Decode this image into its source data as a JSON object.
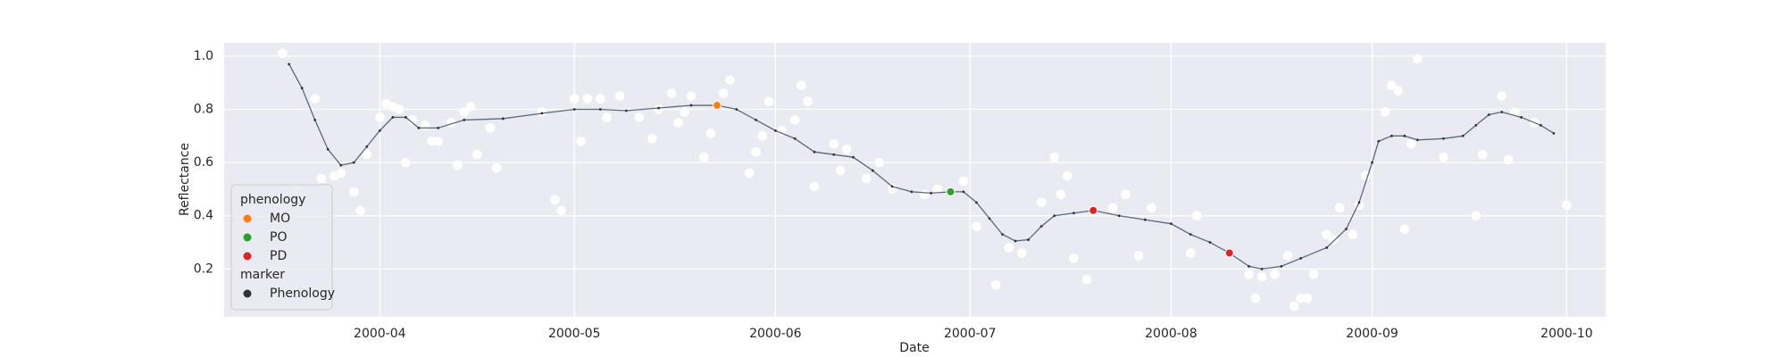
{
  "chart_data": {
    "type": "scatter",
    "x_label": "Date",
    "y_label": "Reflectance",
    "xlim": [
      "2000-03-08",
      "2000-10-07"
    ],
    "xticks": [
      {
        "value": "2000-04-01",
        "label": "2000-04"
      },
      {
        "value": "2000-05-01",
        "label": "2000-05"
      },
      {
        "value": "2000-06-01",
        "label": "2000-06"
      },
      {
        "value": "2000-07-01",
        "label": "2000-07"
      },
      {
        "value": "2000-08-01",
        "label": "2000-08"
      },
      {
        "value": "2000-09-01",
        "label": "2000-09"
      },
      {
        "value": "2000-10-01",
        "label": "2000-10"
      }
    ],
    "ylim": [
      0.02,
      1.05
    ],
    "yticks": [
      0.2,
      0.4,
      0.6,
      0.8,
      {
        "value": 1,
        "label": "1.0"
      }
    ],
    "grid": true,
    "legend": {
      "position": "lower left",
      "title": "phenology",
      "marker_title": "marker",
      "marker_label": "Phenology",
      "marker_color": "#333333"
    },
    "series": [
      {
        "color": "#ffffff",
        "x": [
          "2000-03-17",
          "2000-03-19",
          "2000-03-22",
          "2000-03-23",
          "2000-03-25",
          "2000-03-26",
          "2000-03-28",
          "2000-03-29",
          "2000-03-30",
          "2000-04-01",
          "2000-04-02",
          "2000-04-03",
          "2000-04-04",
          "2000-04-05",
          "2000-04-06",
          "2000-04-08",
          "2000-04-09",
          "2000-04-10",
          "2000-04-12",
          "2000-04-13",
          "2000-04-14",
          "2000-04-15",
          "2000-04-16",
          "2000-04-18",
          "2000-04-19",
          "2000-04-26",
          "2000-04-28",
          "2000-04-29",
          "2000-05-01",
          "2000-05-02",
          "2000-05-03",
          "2000-05-05",
          "2000-05-06",
          "2000-05-08",
          "2000-05-11",
          "2000-05-13",
          "2000-05-14",
          "2000-05-16",
          "2000-05-17",
          "2000-05-18",
          "2000-05-19",
          "2000-05-21",
          "2000-05-22",
          "2000-05-24",
          "2000-05-25",
          "2000-05-28",
          "2000-05-29",
          "2000-05-30",
          "2000-05-31",
          "2000-06-02",
          "2000-06-04",
          "2000-06-05",
          "2000-06-06",
          "2000-06-07",
          "2000-06-10",
          "2000-06-11",
          "2000-06-12",
          "2000-06-15",
          "2000-06-17",
          "2000-06-19",
          "2000-06-24",
          "2000-06-26",
          "2000-06-30",
          "2000-07-02",
          "2000-07-05",
          "2000-07-07",
          "2000-07-09",
          "2000-07-12",
          "2000-07-14",
          "2000-07-15",
          "2000-07-16",
          "2000-07-17",
          "2000-07-19",
          "2000-07-23",
          "2000-07-25",
          "2000-07-27",
          "2000-07-29",
          "2000-08-04",
          "2000-08-05",
          "2000-08-13",
          "2000-08-14",
          "2000-08-15",
          "2000-08-17",
          "2000-08-19",
          "2000-08-20",
          "2000-08-21",
          "2000-08-22",
          "2000-08-23",
          "2000-08-25",
          "2000-08-26",
          "2000-08-27",
          "2000-08-29",
          "2000-08-30",
          "2000-08-31",
          "2000-09-03",
          "2000-09-04",
          "2000-09-05",
          "2000-09-06",
          "2000-09-07",
          "2000-09-08",
          "2000-09-12",
          "2000-09-17",
          "2000-09-18",
          "2000-09-21",
          "2000-09-22",
          "2000-09-23",
          "2000-09-26",
          "2000-10-01"
        ],
        "values": [
          1.01,
          0.49,
          0.84,
          0.54,
          0.55,
          0.56,
          0.49,
          0.42,
          0.63,
          0.77,
          0.82,
          0.81,
          0.8,
          0.6,
          0.76,
          0.74,
          0.68,
          0.68,
          0.75,
          0.59,
          0.79,
          0.81,
          0.63,
          0.73,
          0.58,
          0.79,
          0.46,
          0.42,
          0.84,
          0.68,
          0.84,
          0.84,
          0.77,
          0.85,
          0.77,
          0.69,
          0.8,
          0.86,
          0.75,
          0.79,
          0.85,
          0.62,
          0.71,
          0.86,
          0.91,
          0.56,
          0.64,
          0.7,
          0.83,
          0.72,
          0.76,
          0.89,
          0.83,
          0.51,
          0.67,
          0.57,
          0.65,
          0.54,
          0.6,
          0.5,
          0.48,
          0.5,
          0.53,
          0.36,
          0.14,
          0.28,
          0.26,
          0.45,
          0.62,
          0.48,
          0.55,
          0.24,
          0.16,
          0.43,
          0.48,
          0.25,
          0.43,
          0.26,
          0.4,
          0.18,
          0.09,
          0.17,
          0.18,
          0.25,
          0.06,
          0.09,
          0.09,
          0.18,
          0.33,
          0.31,
          0.43,
          0.33,
          0.44,
          0.55,
          0.79,
          0.89,
          0.87,
          0.35,
          0.67,
          0.99,
          0.62,
          0.4,
          0.63,
          0.85,
          0.61,
          0.79,
          0.75,
          0.44
        ]
      },
      {
        "type": "line",
        "color": "#5b6a7a",
        "x": [
          "2000-03-18",
          "2000-03-20",
          "2000-03-22",
          "2000-03-24",
          "2000-03-26",
          "2000-03-28",
          "2000-03-30",
          "2000-04-01",
          "2000-04-03",
          "2000-04-05",
          "2000-04-07",
          "2000-04-10",
          "2000-04-14",
          "2000-04-20",
          "2000-04-26",
          "2000-05-01",
          "2000-05-05",
          "2000-05-09",
          "2000-05-14",
          "2000-05-19",
          "2000-05-23",
          "2000-05-26",
          "2000-05-29",
          "2000-06-01",
          "2000-06-04",
          "2000-06-07",
          "2000-06-10",
          "2000-06-13",
          "2000-06-16",
          "2000-06-19",
          "2000-06-22",
          "2000-06-25",
          "2000-06-28",
          "2000-06-30",
          "2000-07-02",
          "2000-07-04",
          "2000-07-06",
          "2000-07-08",
          "2000-07-10",
          "2000-07-12",
          "2000-07-14",
          "2000-07-17",
          "2000-07-20",
          "2000-07-24",
          "2000-07-28",
          "2000-08-01",
          "2000-08-04",
          "2000-08-07",
          "2000-08-10",
          "2000-08-13",
          "2000-08-15",
          "2000-08-18",
          "2000-08-21",
          "2000-08-25",
          "2000-08-28",
          "2000-08-30",
          "2000-09-01",
          "2000-09-02",
          "2000-09-04",
          "2000-09-06",
          "2000-09-08",
          "2000-09-12",
          "2000-09-15",
          "2000-09-17",
          "2000-09-19",
          "2000-09-21",
          "2000-09-24",
          "2000-09-27",
          "2000-09-29"
        ],
        "values": [
          0.97,
          0.88,
          0.76,
          0.65,
          0.59,
          0.6,
          0.66,
          0.72,
          0.77,
          0.77,
          0.73,
          0.73,
          0.76,
          0.765,
          0.785,
          0.8,
          0.8,
          0.795,
          0.805,
          0.815,
          0.815,
          0.8,
          0.76,
          0.72,
          0.69,
          0.64,
          0.63,
          0.62,
          0.57,
          0.51,
          0.49,
          0.485,
          0.49,
          0.49,
          0.45,
          0.39,
          0.33,
          0.305,
          0.31,
          0.36,
          0.4,
          0.41,
          0.42,
          0.4,
          0.385,
          0.37,
          0.33,
          0.3,
          0.26,
          0.21,
          0.2,
          0.21,
          0.24,
          0.28,
          0.35,
          0.45,
          0.6,
          0.68,
          0.7,
          0.7,
          0.685,
          0.69,
          0.7,
          0.74,
          0.78,
          0.79,
          0.77,
          0.74,
          0.71
        ]
      },
      {
        "name": "MO",
        "color": "#ff7f0e",
        "x": [
          "2000-05-23"
        ],
        "values": [
          0.815
        ]
      },
      {
        "name": "PO",
        "color": "#2ca02c",
        "x": [
          "2000-06-28"
        ],
        "values": [
          0.49
        ]
      },
      {
        "name": "PD",
        "color": "#d62728",
        "x": [
          "2000-07-20",
          "2000-08-10"
        ],
        "values": [
          0.42,
          0.26
        ]
      }
    ]
  }
}
